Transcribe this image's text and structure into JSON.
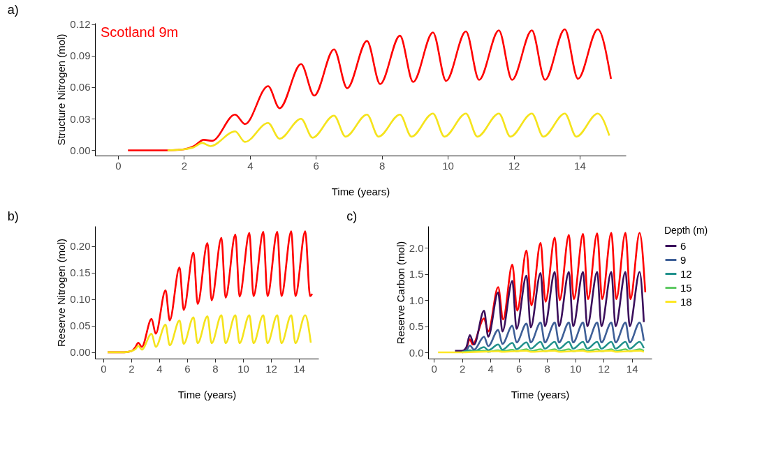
{
  "chart_data": [
    {
      "type": "line",
      "title": "a)",
      "xlabel": "Time (years)",
      "ylabel": "Structure Nitrogen (mol)",
      "annotations": [
        "Scotland 9m"
      ],
      "xlim": [
        -0.7,
        15.4
      ],
      "xticks": [
        0,
        2,
        4,
        6,
        8,
        10,
        12,
        14
      ],
      "ylim": [
        -0.005,
        0.121
      ],
      "yticks": [
        {
          "value": 0,
          "label": "0.00"
        },
        0.03,
        0.06,
        0.09,
        0.12
      ],
      "legend": false,
      "series": [
        {
          "color": "#ff0000",
          "x": [
            0.3,
            1.5,
            2.0,
            2.3,
            2.6,
            2.85,
            3.55,
            3.85,
            4.55,
            4.9,
            5.55,
            5.95,
            6.55,
            6.95,
            7.55,
            7.95,
            8.55,
            8.95,
            9.55,
            9.95,
            10.55,
            10.95,
            11.55,
            11.95,
            12.55,
            12.95,
            13.55,
            13.95,
            14.55,
            14.95
          ],
          "values": [
            0.0,
            0.0,
            0.001,
            0.004,
            0.01,
            0.009,
            0.034,
            0.025,
            0.061,
            0.04,
            0.082,
            0.052,
            0.096,
            0.059,
            0.104,
            0.063,
            0.109,
            0.065,
            0.112,
            0.066,
            0.113,
            0.067,
            0.114,
            0.067,
            0.114,
            0.067,
            0.115,
            0.068,
            0.115,
            0.068
          ]
        },
        {
          "color": "#f5e31c",
          "x": [
            1.5,
            2.0,
            2.3,
            2.55,
            2.8,
            3.55,
            3.85,
            4.55,
            4.9,
            5.55,
            5.9,
            6.55,
            6.9,
            7.55,
            7.9,
            8.55,
            8.9,
            9.55,
            9.9,
            10.55,
            10.9,
            11.55,
            11.9,
            12.55,
            12.9,
            13.55,
            13.9,
            14.55,
            14.9
          ],
          "values": [
            0.0,
            0.001,
            0.003,
            0.007,
            0.004,
            0.018,
            0.008,
            0.026,
            0.011,
            0.03,
            0.012,
            0.033,
            0.013,
            0.034,
            0.013,
            0.034,
            0.013,
            0.035,
            0.013,
            0.035,
            0.013,
            0.035,
            0.013,
            0.035,
            0.013,
            0.035,
            0.013,
            0.035,
            0.014
          ]
        }
      ]
    },
    {
      "type": "line",
      "title": "b)",
      "xlabel": "Time (years)",
      "ylabel": "Reserve Nitrogen (mol)",
      "xlim": [
        -0.6,
        15.4
      ],
      "xticks": [
        0,
        2,
        4,
        6,
        8,
        10,
        12,
        14
      ],
      "ylim": [
        -0.012,
        0.238
      ],
      "yticks": [
        {
          "value": 0,
          "label": "0.00"
        },
        0.05,
        {
          "value": 0.1,
          "label": "0.10"
        },
        0.15,
        {
          "value": 0.2,
          "label": "0.20"
        }
      ],
      "legend": false,
      "series": [
        {
          "color": "#ff0000",
          "x": [
            0.3,
            1.5,
            2.0,
            2.3,
            2.5,
            2.75,
            3.45,
            3.75,
            4.45,
            4.75,
            5.45,
            5.75,
            6.45,
            6.75,
            7.45,
            7.75,
            8.45,
            8.75,
            9.45,
            9.75,
            10.45,
            10.75,
            11.45,
            11.75,
            12.45,
            12.75,
            13.45,
            13.75,
            14.45,
            14.8,
            14.95
          ],
          "values": [
            0.0,
            0.0,
            0.002,
            0.01,
            0.018,
            0.01,
            0.063,
            0.035,
            0.117,
            0.06,
            0.16,
            0.08,
            0.188,
            0.091,
            0.206,
            0.098,
            0.216,
            0.103,
            0.222,
            0.105,
            0.225,
            0.106,
            0.227,
            0.106,
            0.227,
            0.106,
            0.228,
            0.106,
            0.228,
            0.106,
            0.11
          ]
        },
        {
          "color": "#f5e31c",
          "x": [
            0.3,
            1.5,
            2.0,
            2.3,
            2.5,
            2.75,
            3.45,
            3.75,
            4.45,
            4.75,
            5.45,
            5.75,
            6.45,
            6.75,
            7.45,
            7.75,
            8.45,
            8.75,
            9.45,
            9.75,
            10.45,
            10.75,
            11.45,
            11.75,
            12.45,
            12.75,
            13.45,
            13.75,
            14.45,
            14.85
          ],
          "values": [
            0.0,
            0.0,
            0.002,
            0.006,
            0.012,
            0.005,
            0.035,
            0.01,
            0.052,
            0.013,
            0.06,
            0.016,
            0.066,
            0.017,
            0.068,
            0.017,
            0.07,
            0.017,
            0.07,
            0.017,
            0.07,
            0.017,
            0.07,
            0.017,
            0.07,
            0.017,
            0.07,
            0.017,
            0.07,
            0.018
          ]
        }
      ]
    },
    {
      "type": "line",
      "title": "c)",
      "xlabel": "Time (years)",
      "ylabel": "Reserve Carbon (mol)",
      "legend_title": "Depth (m)",
      "legend": "right",
      "xlim": [
        -0.4,
        15.4
      ],
      "xticks": [
        0,
        2,
        4,
        6,
        8,
        10,
        12,
        14
      ],
      "ylim": [
        -0.12,
        2.42
      ],
      "yticks": [
        {
          "value": 0,
          "label": "0.0"
        },
        0.5,
        {
          "value": 1,
          "label": "1.0"
        },
        1.5,
        {
          "value": 2,
          "label": "2.0"
        }
      ],
      "series": [
        {
          "color": "#ff0000",
          "x": [
            2.0,
            2.3,
            2.55,
            2.75,
            3.55,
            3.85,
            4.55,
            4.9,
            5.55,
            5.9,
            6.55,
            6.9,
            7.55,
            7.9,
            8.55,
            8.9,
            9.55,
            9.9,
            10.55,
            10.9,
            11.55,
            11.9,
            12.55,
            12.9,
            13.55,
            13.9,
            14.55,
            14.95
          ],
          "values": [
            0.02,
            0.08,
            0.25,
            0.15,
            0.65,
            0.4,
            1.25,
            0.63,
            1.68,
            0.8,
            1.95,
            0.9,
            2.1,
            0.97,
            2.2,
            1.0,
            2.25,
            1.02,
            2.27,
            1.02,
            2.28,
            1.02,
            2.29,
            1.02,
            2.29,
            1.02,
            2.29,
            1.15
          ]
        },
        {
          "name": "6",
          "color": "#3b0f5c",
          "x": [
            1.5,
            2.0,
            2.3,
            2.55,
            2.85,
            3.55,
            3.85,
            4.55,
            4.85,
            5.55,
            5.85,
            6.55,
            6.85,
            7.55,
            7.85,
            8.55,
            8.85,
            9.55,
            9.85,
            10.55,
            10.85,
            11.55,
            11.85,
            12.55,
            12.85,
            13.55,
            13.85,
            14.55,
            14.85
          ],
          "values": [
            0.03,
            0.03,
            0.1,
            0.33,
            0.15,
            0.8,
            0.3,
            1.15,
            0.4,
            1.37,
            0.45,
            1.47,
            0.48,
            1.52,
            0.5,
            1.54,
            0.5,
            1.54,
            0.5,
            1.54,
            0.5,
            1.54,
            0.5,
            1.54,
            0.5,
            1.54,
            0.5,
            1.54,
            0.58
          ]
        },
        {
          "name": "9",
          "color": "#3e5f97",
          "x": [
            2.0,
            2.3,
            2.55,
            2.85,
            3.55,
            3.85,
            4.55,
            4.85,
            5.55,
            5.85,
            6.55,
            6.85,
            7.55,
            7.85,
            8.55,
            8.85,
            9.55,
            9.85,
            10.55,
            10.85,
            11.55,
            11.85,
            12.55,
            12.85,
            13.55,
            13.85,
            14.55,
            14.85
          ],
          "values": [
            0.01,
            0.04,
            0.13,
            0.05,
            0.3,
            0.12,
            0.43,
            0.16,
            0.51,
            0.19,
            0.55,
            0.19,
            0.57,
            0.19,
            0.57,
            0.19,
            0.57,
            0.19,
            0.57,
            0.19,
            0.57,
            0.19,
            0.57,
            0.19,
            0.57,
            0.19,
            0.57,
            0.22
          ]
        },
        {
          "name": "12",
          "color": "#21918c",
          "x": [
            2.0,
            2.55,
            2.85,
            3.55,
            3.85,
            4.55,
            4.85,
            5.55,
            5.85,
            6.55,
            6.85,
            7.55,
            7.85,
            8.55,
            8.85,
            9.55,
            9.85,
            10.55,
            10.85,
            11.55,
            11.85,
            12.55,
            12.85,
            13.55,
            13.85,
            14.55,
            14.85
          ],
          "values": [
            0.0,
            0.04,
            0.02,
            0.1,
            0.04,
            0.15,
            0.05,
            0.18,
            0.06,
            0.19,
            0.07,
            0.2,
            0.07,
            0.2,
            0.07,
            0.2,
            0.07,
            0.2,
            0.07,
            0.2,
            0.07,
            0.2,
            0.07,
            0.2,
            0.07,
            0.2,
            0.08
          ]
        },
        {
          "name": "15",
          "color": "#5ec962",
          "x": [
            2.0,
            3.55,
            3.85,
            4.55,
            4.85,
            5.55,
            5.85,
            6.55,
            6.85,
            7.55,
            7.85,
            8.55,
            8.85,
            9.55,
            9.85,
            10.55,
            10.85,
            11.55,
            11.85,
            12.55,
            12.85,
            13.55,
            13.85,
            14.55,
            14.85
          ],
          "values": [
            0.0,
            0.03,
            0.01,
            0.04,
            0.02,
            0.05,
            0.02,
            0.06,
            0.02,
            0.06,
            0.02,
            0.06,
            0.02,
            0.06,
            0.02,
            0.06,
            0.02,
            0.06,
            0.02,
            0.06,
            0.02,
            0.06,
            0.02,
            0.06,
            0.03
          ]
        },
        {
          "name": "18",
          "color": "#fde725",
          "x": [
            0.3,
            2.0,
            4.55,
            4.85,
            6.55,
            6.85,
            8.55,
            8.85,
            10.55,
            10.85,
            12.55,
            12.85,
            14.55,
            14.85
          ],
          "values": [
            0.0,
            0.0,
            0.02,
            0.01,
            0.03,
            0.01,
            0.03,
            0.01,
            0.03,
            0.01,
            0.03,
            0.01,
            0.03,
            0.01
          ]
        }
      ]
    }
  ]
}
